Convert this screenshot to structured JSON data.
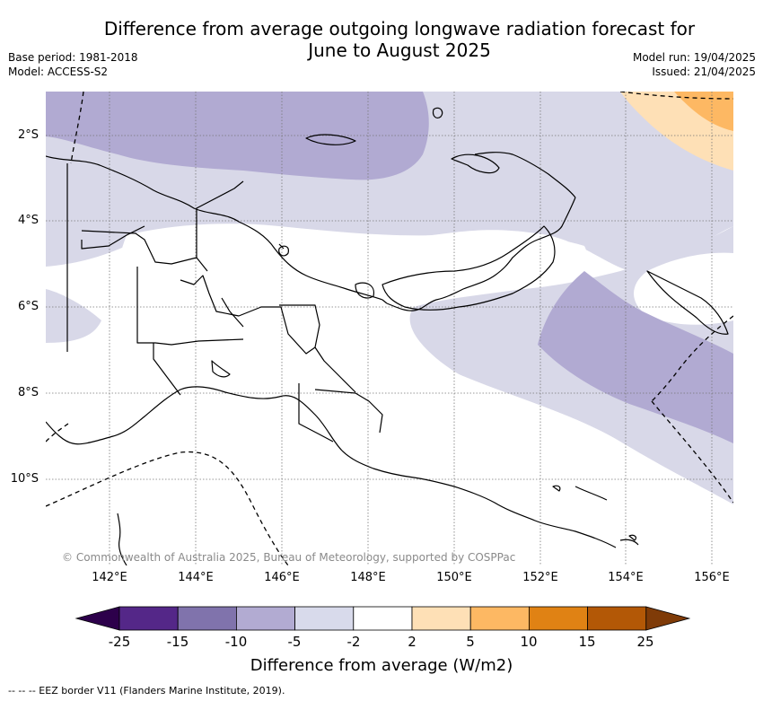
{
  "title": {
    "line1": "Difference from average outgoing longwave radiation forecast for",
    "line2": "June to August 2025"
  },
  "meta_left": {
    "base_period": "Base period: 1981-2018",
    "model": "Model: ACCESS-S2"
  },
  "meta_right": {
    "model_run": "Model run: 19/04/2025",
    "issued": "Issued: 21/04/2025"
  },
  "map": {
    "region": "Papua New Guinea",
    "lat_labels": [
      "2°S",
      "4°S",
      "6°S",
      "8°S",
      "10°S"
    ],
    "lon_labels": [
      "142°E",
      "144°E",
      "146°E",
      "148°E",
      "150°E",
      "152°E",
      "154°E",
      "156°E"
    ],
    "copyright": "© Commonwealth of Australia 2025, Bureau of Meteorology, supported by COSPPac",
    "gridlines": true,
    "colors": {
      "class_-15_-10": "#b1aad2",
      "class_-10_-5": "#b1aad2",
      "class_-5_-2": "#d8d8e8",
      "class_-2_2": "#ffffff",
      "class_2_5": "#fee0b6",
      "class_5_10": "#fdb863",
      "land_outline": "#000000",
      "grid": "#777777"
    }
  },
  "colorbar": {
    "ticks": [
      "-25",
      "-15",
      "-10",
      "-5",
      "-2",
      "2",
      "5",
      "10",
      "15",
      "25"
    ],
    "colors": [
      "#2d004b",
      "#542788",
      "#8073ac",
      "#b2abd2",
      "#d8daeb",
      "#ffffff",
      "#fee0b6",
      "#fdb863",
      "#e08214",
      "#b35806",
      "#7f3b08"
    ],
    "label": "Difference from average (W/m2)"
  },
  "eez_note": "-- -- -- EEZ border V11 (Flanders Marine Institute, 2019)."
}
